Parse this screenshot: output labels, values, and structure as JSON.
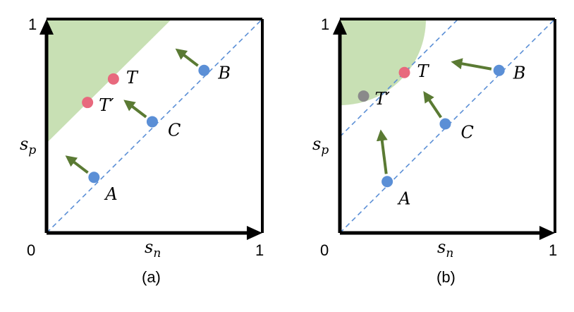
{
  "colors": {
    "region_fill": "#c8e0b4",
    "point_blue": "#5b8fd6",
    "point_target": "#e8697d",
    "point_grey": "#8a8a8a",
    "arrow": "#5a7a33",
    "diagonal": "#5b8fd6",
    "axis": "#000000"
  },
  "panels": [
    {
      "caption": "(a)",
      "axis": {
        "x_label": "s",
        "x_sub": "n",
        "y_label": "s",
        "y_sub": "p",
        "origin": "0",
        "x_max": "1",
        "y_max": "1"
      },
      "region": {
        "shape": "triangle",
        "description_points": [
          [
            0,
            1
          ],
          [
            0,
            0.42
          ],
          [
            0.58,
            1
          ]
        ]
      },
      "diagonal": {
        "from": [
          0,
          0
        ],
        "to": [
          1,
          1
        ]
      },
      "points": [
        {
          "label": "A",
          "x": 0.22,
          "y": 0.26,
          "color": "blue"
        },
        {
          "label": "C",
          "x": 0.49,
          "y": 0.52,
          "color": "blue"
        },
        {
          "label": "B",
          "x": 0.73,
          "y": 0.76,
          "color": "blue"
        },
        {
          "label": "T",
          "x": 0.31,
          "y": 0.72,
          "color": "target"
        },
        {
          "label": "T′",
          "x": 0.19,
          "y": 0.61,
          "color": "target"
        }
      ],
      "arrows": [
        {
          "from": [
            0.22,
            0.26
          ],
          "to": [
            0.09,
            0.36
          ]
        },
        {
          "from": [
            0.49,
            0.52
          ],
          "to": [
            0.36,
            0.62
          ]
        },
        {
          "from": [
            0.73,
            0.76
          ],
          "to": [
            0.6,
            0.86
          ]
        }
      ]
    },
    {
      "caption": "(b)",
      "axis": {
        "x_label": "s",
        "x_sub": "n",
        "y_label": "s",
        "y_sub": "p",
        "origin": "0",
        "x_max": "1",
        "y_max": "1"
      },
      "region": {
        "shape": "quarter-circle",
        "center": [
          0,
          1
        ],
        "radius": 0.4
      },
      "diagonal": {
        "from": [
          0,
          0
        ],
        "to": [
          1,
          1
        ]
      },
      "offset_line": {
        "from": [
          0,
          0.45
        ],
        "to": [
          0.55,
          1
        ]
      },
      "points": [
        {
          "label": "A",
          "x": 0.22,
          "y": 0.24,
          "color": "blue"
        },
        {
          "label": "C",
          "x": 0.49,
          "y": 0.51,
          "color": "blue"
        },
        {
          "label": "B",
          "x": 0.74,
          "y": 0.76,
          "color": "blue"
        },
        {
          "label": "T",
          "x": 0.3,
          "y": 0.75,
          "color": "target"
        },
        {
          "label": "T′",
          "x": 0.11,
          "y": 0.64,
          "color": "grey"
        }
      ],
      "arrows": [
        {
          "from": [
            0.22,
            0.24
          ],
          "to": [
            0.19,
            0.48
          ]
        },
        {
          "from": [
            0.49,
            0.51
          ],
          "to": [
            0.39,
            0.66
          ]
        },
        {
          "from": [
            0.74,
            0.76
          ],
          "to": [
            0.52,
            0.8
          ]
        }
      ]
    }
  ]
}
